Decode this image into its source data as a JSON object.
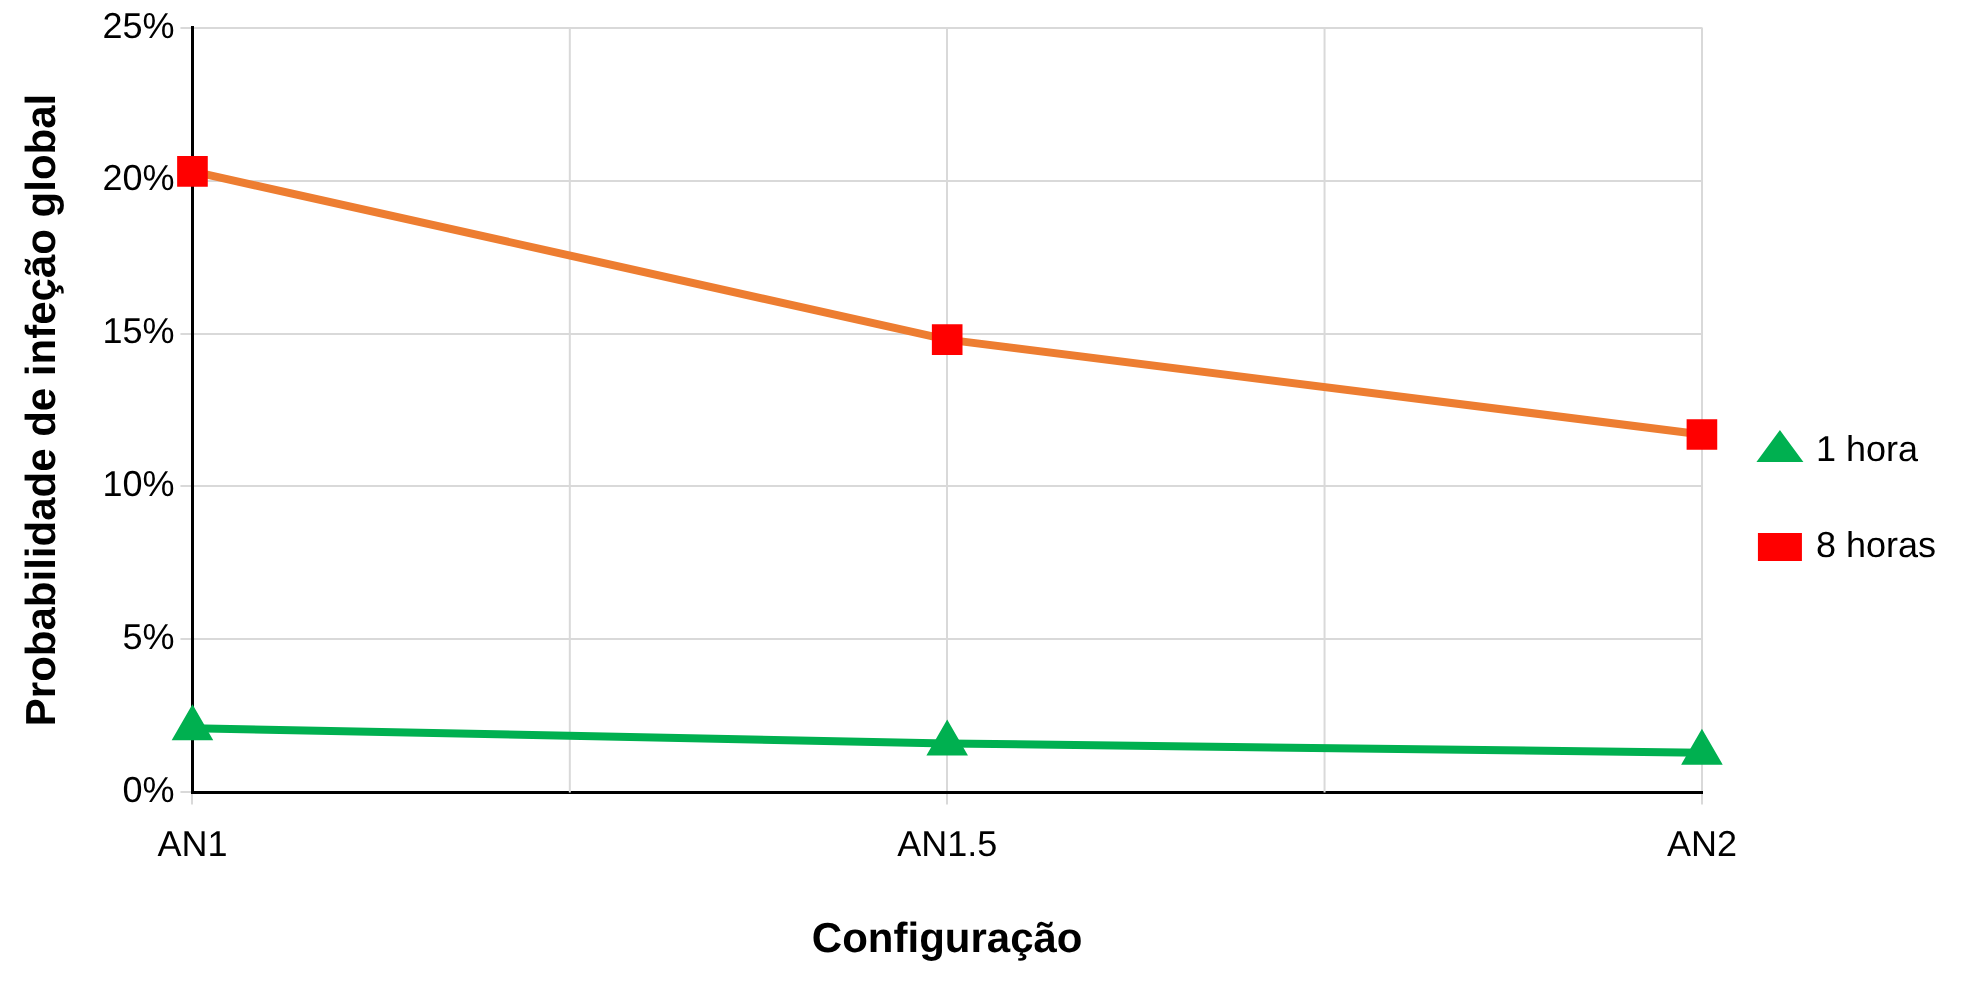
{
  "chart_data": {
    "type": "line",
    "xlabel": "Configuração",
    "ylabel": "Probabilidade de infeção global",
    "categories": [
      "AN1",
      "AN1.5",
      "AN2"
    ],
    "ylim": [
      0,
      25
    ],
    "yticks": [
      {
        "value": 0,
        "label": "0%"
      },
      {
        "value": 5,
        "label": "5%"
      },
      {
        "value": 10,
        "label": "10%"
      },
      {
        "value": 15,
        "label": "15%"
      },
      {
        "value": 20,
        "label": "20%"
      },
      {
        "value": 25,
        "label": "25%"
      }
    ],
    "series": [
      {
        "name": "1 hora",
        "color": "#00b050",
        "marker": "triangle",
        "values": [
          2.1,
          1.6,
          1.3
        ]
      },
      {
        "name": "8 horas",
        "color": "#ed7d31",
        "marker": "square",
        "colors": [
          "#ff0000",
          "#ff0000",
          "#ff0000"
        ],
        "values": [
          20.3,
          14.8,
          11.7
        ]
      }
    ],
    "grid": true,
    "legend": "right",
    "line_style": "solid"
  }
}
